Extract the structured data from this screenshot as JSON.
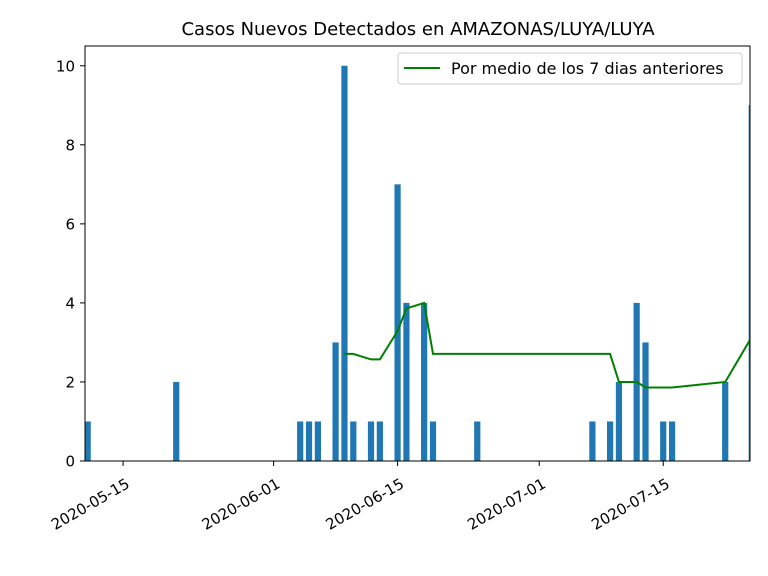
{
  "chart_data": {
    "type": "bar",
    "title": "Casos Nuevos Detectados en AMAZONAS/LUYA/LUYA",
    "xlabel": "",
    "ylabel": "",
    "x_range": [
      "2020-05-11",
      "2020-07-24"
    ],
    "ylim": [
      0,
      10.5
    ],
    "y_ticks": [
      0,
      2,
      4,
      6,
      8,
      10
    ],
    "x_ticks": [
      "2020-05-15",
      "2020-06-01",
      "2020-06-15",
      "2020-07-01",
      "2020-07-15"
    ],
    "grid": false,
    "legend_position": "top-right",
    "bar_color": "#1f77b4",
    "line_color": "#008000",
    "bars": [
      {
        "date": "2020-05-11",
        "value": 1
      },
      {
        "date": "2020-05-21",
        "value": 2
      },
      {
        "date": "2020-06-04",
        "value": 1
      },
      {
        "date": "2020-06-05",
        "value": 1
      },
      {
        "date": "2020-06-06",
        "value": 1
      },
      {
        "date": "2020-06-08",
        "value": 3
      },
      {
        "date": "2020-06-09",
        "value": 10
      },
      {
        "date": "2020-06-10",
        "value": 1
      },
      {
        "date": "2020-06-12",
        "value": 1
      },
      {
        "date": "2020-06-13",
        "value": 1
      },
      {
        "date": "2020-06-15",
        "value": 7
      },
      {
        "date": "2020-06-16",
        "value": 4
      },
      {
        "date": "2020-06-18",
        "value": 4
      },
      {
        "date": "2020-06-19",
        "value": 1
      },
      {
        "date": "2020-06-24",
        "value": 1
      },
      {
        "date": "2020-07-07",
        "value": 1
      },
      {
        "date": "2020-07-09",
        "value": 1
      },
      {
        "date": "2020-07-10",
        "value": 2
      },
      {
        "date": "2020-07-12",
        "value": 4
      },
      {
        "date": "2020-07-13",
        "value": 3
      },
      {
        "date": "2020-07-15",
        "value": 1
      },
      {
        "date": "2020-07-16",
        "value": 1
      },
      {
        "date": "2020-07-22",
        "value": 2
      },
      {
        "date": "2020-07-25",
        "value": 9
      }
    ],
    "series": [
      {
        "name": "Por medio de los 7 dias anteriores",
        "points": [
          {
            "date": "2020-06-09",
            "value": 2.71
          },
          {
            "date": "2020-06-10",
            "value": 2.71
          },
          {
            "date": "2020-06-12",
            "value": 2.57
          },
          {
            "date": "2020-06-13",
            "value": 2.57
          },
          {
            "date": "2020-06-15",
            "value": 3.29
          },
          {
            "date": "2020-06-16",
            "value": 3.86
          },
          {
            "date": "2020-06-18",
            "value": 4.0
          },
          {
            "date": "2020-06-19",
            "value": 2.71
          },
          {
            "date": "2020-06-24",
            "value": 2.71
          },
          {
            "date": "2020-07-09",
            "value": 2.71
          },
          {
            "date": "2020-07-10",
            "value": 2.0
          },
          {
            "date": "2020-07-12",
            "value": 2.0
          },
          {
            "date": "2020-07-13",
            "value": 1.86
          },
          {
            "date": "2020-07-16",
            "value": 1.86
          },
          {
            "date": "2020-07-22",
            "value": 2.0
          },
          {
            "date": "2020-07-25",
            "value": 3.14
          }
        ]
      }
    ]
  }
}
